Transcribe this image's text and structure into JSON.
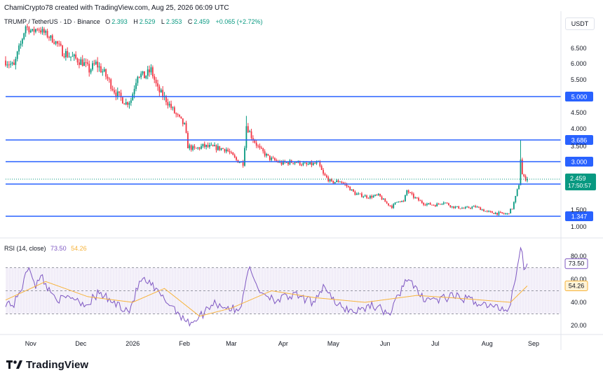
{
  "header": {
    "created_by": "ChamiCrypto78 created with TradingView.com, Aug 25, 2026 06:09 UTC"
  },
  "legend": {
    "symbol": "TRUMP / TetherUS · 1D · Binance",
    "open_label": "O",
    "open": "2.393",
    "high_label": "H",
    "high": "2.529",
    "low_label": "L",
    "low": "2.353",
    "close_label": "C",
    "close": "2.459",
    "change": "+0.065 (+2.72%)"
  },
  "currency": "USDT",
  "rsi_legend": {
    "title": "RSI (14, close)",
    "rsi_value": "73.50",
    "ma_value": "54.26"
  },
  "brand": {
    "name": "TradingView"
  },
  "colors": {
    "up": "#089981",
    "down": "#f23645",
    "level_line": "#2962ff",
    "rsi_line": "#7e57c2",
    "rsi_ma": "#f7b33a",
    "rsi_band": "#7e57c2",
    "price_tag": "#089981"
  },
  "chart_data": [
    {
      "type": "candlestick",
      "y_ticks": [
        "6.500",
        "6.000",
        "5.500",
        "4.500",
        "4.000",
        "3.500",
        "1.500",
        "1.000"
      ],
      "x_ticks": [
        "Nov",
        "Dec",
        "2026",
        "Feb",
        "Mar",
        "Apr",
        "May",
        "Jun",
        "Jul",
        "Aug",
        "Sep"
      ],
      "horizontal_levels": [
        {
          "value": 5.0,
          "label": "5.000"
        },
        {
          "value": 3.686,
          "label": "3.686"
        },
        {
          "value": 3.0,
          "label": "3.000"
        },
        {
          "value": 2.3,
          "label": "2.300"
        },
        {
          "value": 1.347,
          "label": "1.347"
        }
      ],
      "last_price": {
        "value": 2.459,
        "label": "2.459",
        "countdown": "17:50:57"
      },
      "close_path": [
        {
          "date": "2025-10-17",
          "close": 6.1
        },
        {
          "date": "2025-10-22",
          "close": 5.9
        },
        {
          "date": "2025-10-26",
          "close": 6.7
        },
        {
          "date": "2025-10-29",
          "close": 7.6
        },
        {
          "date": "2025-11-02",
          "close": 7.3
        },
        {
          "date": "2025-11-05",
          "close": 7.5
        },
        {
          "date": "2025-11-10",
          "close": 7.2
        },
        {
          "date": "2025-11-16",
          "close": 6.8
        },
        {
          "date": "2025-11-20",
          "close": 6.4
        },
        {
          "date": "2025-11-26",
          "close": 6.2
        },
        {
          "date": "2025-12-02",
          "close": 6.05
        },
        {
          "date": "2025-12-06",
          "close": 5.8
        },
        {
          "date": "2025-12-10",
          "close": 6.0
        },
        {
          "date": "2025-12-15",
          "close": 5.7
        },
        {
          "date": "2025-12-22",
          "close": 5.1
        },
        {
          "date": "2025-12-28",
          "close": 4.8
        },
        {
          "date": "2025-12-31",
          "close": 4.9
        },
        {
          "date": "2026-01-04",
          "close": 5.7
        },
        {
          "date": "2026-01-08",
          "close": 5.6
        },
        {
          "date": "2026-01-12",
          "close": 5.8
        },
        {
          "date": "2026-01-16",
          "close": 5.2
        },
        {
          "date": "2026-01-21",
          "close": 4.9
        },
        {
          "date": "2026-01-26",
          "close": 4.5
        },
        {
          "date": "2026-02-01",
          "close": 4.1
        },
        {
          "date": "2026-02-03",
          "close": 3.5
        },
        {
          "date": "2026-02-07",
          "close": 3.4
        },
        {
          "date": "2026-02-12",
          "close": 3.5
        },
        {
          "date": "2026-02-20",
          "close": 3.45
        },
        {
          "date": "2026-02-26",
          "close": 3.4
        },
        {
          "date": "2026-03-04",
          "close": 3.05
        },
        {
          "date": "2026-03-08",
          "close": 2.95
        },
        {
          "date": "2026-03-10",
          "close": 4.1
        },
        {
          "date": "2026-03-13",
          "close": 3.8
        },
        {
          "date": "2026-03-18",
          "close": 3.4
        },
        {
          "date": "2026-03-24",
          "close": 3.1
        },
        {
          "date": "2026-03-31",
          "close": 2.95
        },
        {
          "date": "2026-04-08",
          "close": 3.0
        },
        {
          "date": "2026-04-15",
          "close": 2.9
        },
        {
          "date": "2026-04-22",
          "close": 2.95
        },
        {
          "date": "2026-04-25",
          "close": 2.6
        },
        {
          "date": "2026-04-30",
          "close": 2.35
        },
        {
          "date": "2026-05-05",
          "close": 2.4
        },
        {
          "date": "2026-05-10",
          "close": 2.2
        },
        {
          "date": "2026-05-14",
          "close": 2.0
        },
        {
          "date": "2026-05-22",
          "close": 1.9
        },
        {
          "date": "2026-05-28",
          "close": 1.95
        },
        {
          "date": "2026-06-02",
          "close": 1.7
        },
        {
          "date": "2026-06-05",
          "close": 1.6
        },
        {
          "date": "2026-06-09",
          "close": 1.8
        },
        {
          "date": "2026-06-12",
          "close": 1.75
        },
        {
          "date": "2026-06-14",
          "close": 2.1
        },
        {
          "date": "2026-06-18",
          "close": 1.9
        },
        {
          "date": "2026-06-24",
          "close": 1.7
        },
        {
          "date": "2026-07-01",
          "close": 1.65
        },
        {
          "date": "2026-07-06",
          "close": 1.75
        },
        {
          "date": "2026-07-11",
          "close": 1.6
        },
        {
          "date": "2026-07-18",
          "close": 1.55
        },
        {
          "date": "2026-07-25",
          "close": 1.6
        },
        {
          "date": "2026-08-01",
          "close": 1.45
        },
        {
          "date": "2026-08-07",
          "close": 1.42
        },
        {
          "date": "2026-08-13",
          "close": 1.4
        },
        {
          "date": "2026-08-16",
          "close": 1.55
        },
        {
          "date": "2026-08-18",
          "close": 1.9
        },
        {
          "date": "2026-08-20",
          "close": 2.3
        },
        {
          "date": "2026-08-21",
          "close": 3.1
        },
        {
          "date": "2026-08-22",
          "close": 2.6
        },
        {
          "date": "2026-08-23",
          "close": 2.5
        },
        {
          "date": "2026-08-25",
          "close": 2.459
        }
      ],
      "spike_highs": [
        {
          "date": "2026-03-10",
          "high": 4.4
        },
        {
          "date": "2026-08-21",
          "high": 3.686
        }
      ]
    },
    {
      "type": "line",
      "title": "RSI (14, close)",
      "y_ticks": [
        "80.00",
        "60.00",
        "40.00",
        "20.00"
      ],
      "band": [
        30,
        70
      ],
      "last_values": [
        {
          "name": "RSI",
          "value": 73.5,
          "label": "73.50"
        },
        {
          "name": "MA",
          "value": 54.26,
          "label": "54.26"
        }
      ],
      "rsi_path": [
        {
          "date": "2025-10-17",
          "value": 40
        },
        {
          "date": "2025-10-22",
          "value": 38
        },
        {
          "date": "2025-10-28",
          "value": 58
        },
        {
          "date": "2025-10-31",
          "value": 72
        },
        {
          "date": "2025-11-04",
          "value": 55
        },
        {
          "date": "2025-11-08",
          "value": 62
        },
        {
          "date": "2025-11-12",
          "value": 50
        },
        {
          "date": "2025-11-19",
          "value": 42
        },
        {
          "date": "2025-11-26",
          "value": 45
        },
        {
          "date": "2025-12-04",
          "value": 38
        },
        {
          "date": "2025-12-12",
          "value": 48
        },
        {
          "date": "2025-12-20",
          "value": 40
        },
        {
          "date": "2025-12-30",
          "value": 33
        },
        {
          "date": "2026-01-06",
          "value": 60
        },
        {
          "date": "2026-01-12",
          "value": 55
        },
        {
          "date": "2026-01-18",
          "value": 45
        },
        {
          "date": "2026-01-26",
          "value": 35
        },
        {
          "date": "2026-02-03",
          "value": 22
        },
        {
          "date": "2026-02-10",
          "value": 27
        },
        {
          "date": "2026-02-18",
          "value": 40
        },
        {
          "date": "2026-02-26",
          "value": 36
        },
        {
          "date": "2026-03-06",
          "value": 32
        },
        {
          "date": "2026-03-11",
          "value": 70
        },
        {
          "date": "2026-03-18",
          "value": 50
        },
        {
          "date": "2026-03-28",
          "value": 42
        },
        {
          "date": "2026-04-08",
          "value": 46
        },
        {
          "date": "2026-04-18",
          "value": 40
        },
        {
          "date": "2026-04-26",
          "value": 55
        },
        {
          "date": "2026-05-02",
          "value": 38
        },
        {
          "date": "2026-05-14",
          "value": 32
        },
        {
          "date": "2026-05-24",
          "value": 38
        },
        {
          "date": "2026-06-04",
          "value": 30
        },
        {
          "date": "2026-06-14",
          "value": 62
        },
        {
          "date": "2026-06-22",
          "value": 45
        },
        {
          "date": "2026-07-02",
          "value": 42
        },
        {
          "date": "2026-07-12",
          "value": 45
        },
        {
          "date": "2026-07-22",
          "value": 42
        },
        {
          "date": "2026-08-04",
          "value": 36
        },
        {
          "date": "2026-08-14",
          "value": 34
        },
        {
          "date": "2026-08-19",
          "value": 70
        },
        {
          "date": "2026-08-21",
          "value": 88
        },
        {
          "date": "2026-08-23",
          "value": 72
        },
        {
          "date": "2026-08-25",
          "value": 73.5
        }
      ],
      "ma_path": [
        {
          "date": "2025-10-17",
          "value": 42
        },
        {
          "date": "2025-11-10",
          "value": 58
        },
        {
          "date": "2025-12-05",
          "value": 45
        },
        {
          "date": "2026-01-01",
          "value": 40
        },
        {
          "date": "2026-01-20",
          "value": 52
        },
        {
          "date": "2026-02-10",
          "value": 28
        },
        {
          "date": "2026-03-01",
          "value": 35
        },
        {
          "date": "2026-03-25",
          "value": 50
        },
        {
          "date": "2026-04-20",
          "value": 44
        },
        {
          "date": "2026-05-20",
          "value": 40
        },
        {
          "date": "2026-06-20",
          "value": 46
        },
        {
          "date": "2026-07-20",
          "value": 43
        },
        {
          "date": "2026-08-15",
          "value": 40
        },
        {
          "date": "2026-08-25",
          "value": 54.26
        }
      ]
    }
  ]
}
